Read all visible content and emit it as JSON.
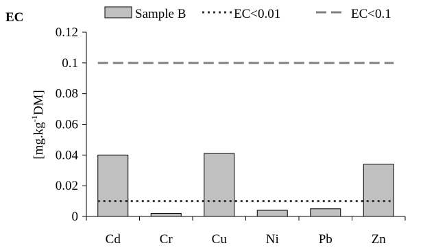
{
  "chart_data": {
    "type": "bar",
    "panel_label": "EC",
    "ylabel_main": "[mg.kg",
    "ylabel_sup": "-1",
    "ylabel_tail": "DM]",
    "categories": [
      "Cd",
      "Cr",
      "Cu",
      "Ni",
      "Pb",
      "Zn"
    ],
    "series": [
      {
        "name": "Sample B",
        "values": [
          0.04,
          0.002,
          0.041,
          0.004,
          0.005,
          0.034
        ]
      }
    ],
    "reference_lines": [
      {
        "name": "EC<0.01",
        "value": 0.01,
        "style": "dotted",
        "color": "#333333"
      },
      {
        "name": "EC<0.1",
        "value": 0.1,
        "style": "dashed",
        "color": "#808080"
      }
    ],
    "yticks": [
      "0",
      "0.02",
      "0.04",
      "0.06",
      "0.08",
      "0.1",
      "0.12"
    ],
    "ylim": [
      0,
      0.12
    ],
    "grid": false,
    "legend_position": "top",
    "bar_color": "#c0c0c0"
  }
}
